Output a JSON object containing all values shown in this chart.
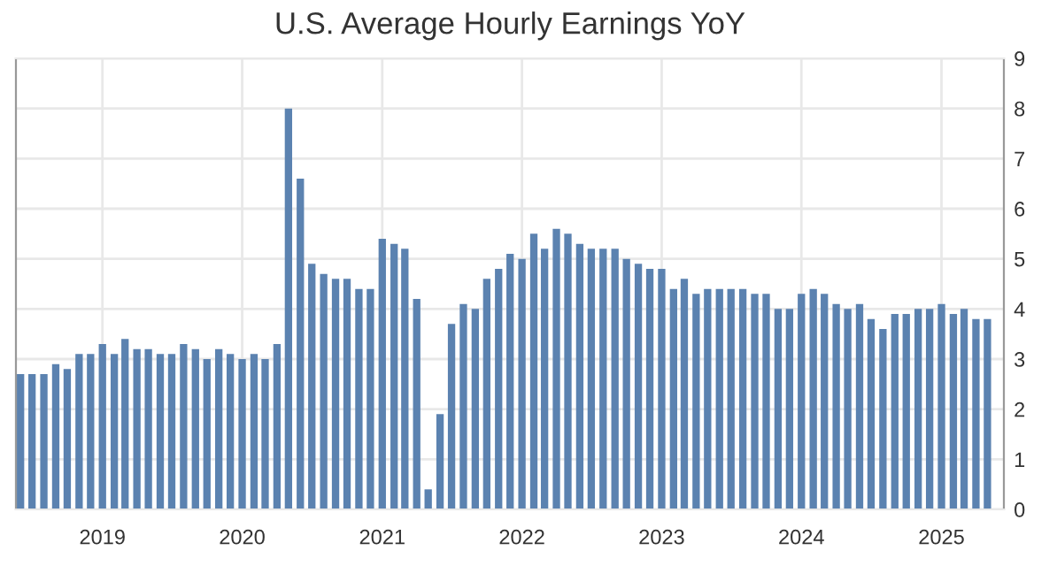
{
  "chart_data": {
    "type": "bar",
    "title": "U.S. Average Hourly Earnings YoY",
    "x": [
      "2018-06",
      "2018-07",
      "2018-08",
      "2018-09",
      "2018-10",
      "2018-11",
      "2018-12",
      "2019-01",
      "2019-02",
      "2019-03",
      "2019-04",
      "2019-05",
      "2019-06",
      "2019-07",
      "2019-08",
      "2019-09",
      "2019-10",
      "2019-11",
      "2019-12",
      "2020-01",
      "2020-02",
      "2020-03",
      "2020-04",
      "2020-05",
      "2020-06",
      "2020-07",
      "2020-08",
      "2020-09",
      "2020-10",
      "2020-11",
      "2020-12",
      "2021-01",
      "2021-02",
      "2021-03",
      "2021-04",
      "2021-05",
      "2021-06",
      "2021-07",
      "2021-08",
      "2021-09",
      "2021-10",
      "2021-11",
      "2021-12",
      "2022-01",
      "2022-02",
      "2022-03",
      "2022-04",
      "2022-05",
      "2022-06",
      "2022-07",
      "2022-08",
      "2022-09",
      "2022-10",
      "2022-11",
      "2022-12",
      "2023-01",
      "2023-02",
      "2023-03",
      "2023-04",
      "2023-05",
      "2023-06",
      "2023-07",
      "2023-08",
      "2023-09",
      "2023-10",
      "2023-11",
      "2023-12",
      "2024-01",
      "2024-02",
      "2024-03",
      "2024-04",
      "2024-05",
      "2024-06",
      "2024-07",
      "2024-08",
      "2024-09",
      "2024-10",
      "2024-11",
      "2024-12",
      "2025-01",
      "2025-02",
      "2025-03",
      "2025-04",
      "2025-05"
    ],
    "values": [
      2.7,
      2.7,
      2.7,
      2.9,
      2.8,
      3.1,
      3.1,
      3.3,
      3.1,
      3.4,
      3.2,
      3.2,
      3.1,
      3.1,
      3.3,
      3.2,
      3.0,
      3.2,
      3.1,
      3.0,
      3.1,
      3.0,
      3.3,
      8.0,
      6.6,
      4.9,
      4.7,
      4.6,
      4.6,
      4.4,
      4.4,
      5.4,
      5.3,
      5.2,
      4.2,
      0.4,
      1.9,
      3.7,
      4.1,
      4.0,
      4.6,
      4.8,
      5.1,
      5.0,
      5.5,
      5.2,
      5.6,
      5.5,
      5.3,
      5.2,
      5.2,
      5.2,
      5.0,
      4.9,
      4.8,
      4.8,
      4.4,
      4.6,
      4.3,
      4.4,
      4.4,
      4.4,
      4.4,
      4.3,
      4.3,
      4.0,
      4.0,
      4.3,
      4.4,
      4.3,
      4.1,
      4.0,
      4.1,
      3.8,
      3.6,
      3.9,
      3.9,
      4.0,
      4.0,
      4.1,
      3.9,
      4.0,
      3.8,
      3.8
    ],
    "color": "#5b82b0",
    "xlim": [
      "2018-05-20",
      "2025-06-13"
    ],
    "xticks": [
      {
        "value": "2019-01",
        "label": "2019"
      },
      {
        "value": "2020-01",
        "label": "2020"
      },
      {
        "value": "2021-01",
        "label": "2021"
      },
      {
        "value": "2022-01",
        "label": "2022"
      },
      {
        "value": "2023-01",
        "label": "2023"
      },
      {
        "value": "2024-01",
        "label": "2024"
      },
      {
        "value": "2025-01",
        "label": "2025"
      }
    ],
    "ylim": [
      0,
      9
    ],
    "yticks": [
      0,
      1,
      2,
      3,
      4,
      5,
      6,
      7,
      8,
      9
    ],
    "grid": true
  }
}
